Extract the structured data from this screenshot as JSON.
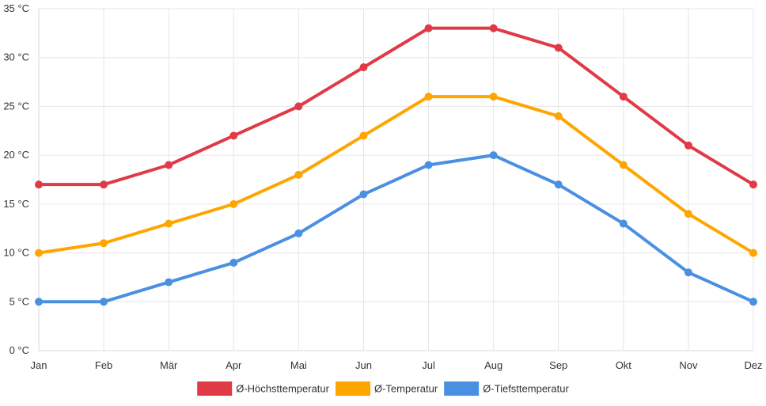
{
  "chart_data": {
    "type": "line",
    "title": "",
    "xlabel": "",
    "ylabel": "",
    "categories": [
      "Jan",
      "Feb",
      "Mär",
      "Apr",
      "Mai",
      "Jun",
      "Jul",
      "Aug",
      "Sep",
      "Okt",
      "Nov",
      "Dez"
    ],
    "ylim": [
      0,
      35
    ],
    "yticks": [
      0,
      5,
      10,
      15,
      20,
      25,
      30,
      35
    ],
    "ytick_labels": [
      "0 °C",
      "5 °C",
      "10 °C",
      "15 °C",
      "20 °C",
      "25 °C",
      "30 °C",
      "35 °C"
    ],
    "grid": true,
    "legend_position": "bottom",
    "series": [
      {
        "name": "Ø-Höchsttemperatur",
        "color": "#e03a46",
        "values": [
          17,
          17,
          19,
          22,
          25,
          29,
          33,
          33,
          31,
          26,
          21,
          17
        ]
      },
      {
        "name": "Ø-Temperatur",
        "color": "#ffa500",
        "values": [
          10,
          11,
          13,
          15,
          18,
          22,
          26,
          26,
          24,
          19,
          14,
          10
        ]
      },
      {
        "name": "Ø-Tiefsttemperatur",
        "color": "#4a90e2",
        "values": [
          5,
          5,
          7,
          9,
          12,
          16,
          19,
          20,
          17,
          13,
          8,
          5
        ]
      }
    ]
  }
}
